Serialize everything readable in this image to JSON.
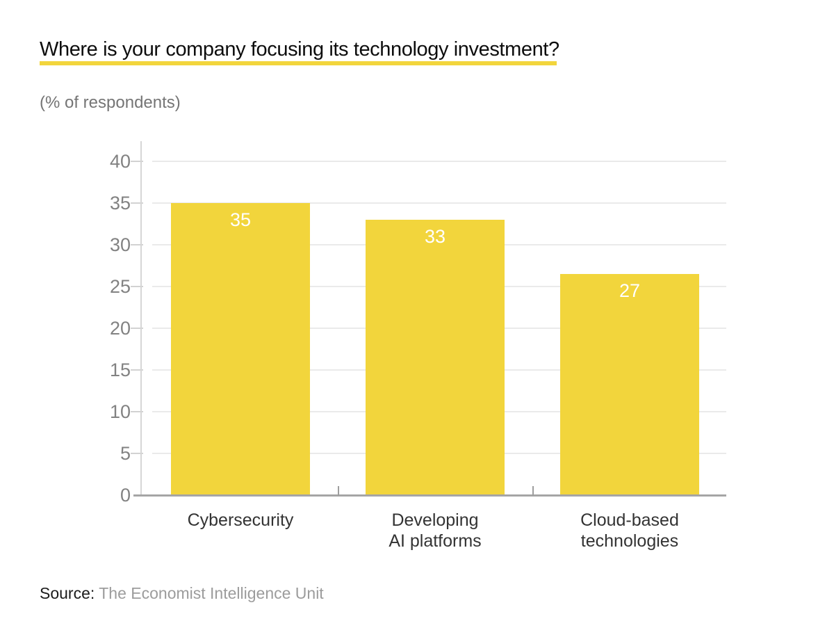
{
  "header": {
    "title": "Where is your company focusing its technology investment?",
    "subtitle": "(% of respondents)"
  },
  "footer": {
    "source_label": "Source:",
    "source_value": "The Economist Intelligence Unit"
  },
  "colors": {
    "accent_yellow": "#F2D53C",
    "grid": "#EAEAEA",
    "axis": "#A5A5A5",
    "y_label_text": "#828282",
    "x_label_text": "#333333",
    "bar_value_text": "#FFFFFF"
  },
  "chart_data": {
    "type": "bar",
    "title": "Where is your company focusing its technology investment?",
    "subtitle": "(% of respondents)",
    "categories": [
      "Cybersecurity",
      "Developing\nAI platforms",
      "Cloud-based\ntechnologies"
    ],
    "values": [
      35,
      33,
      27
    ],
    "bar_labels": [
      "35",
      "33",
      "27"
    ],
    "rendered_bar_heights": [
      35,
      33,
      26.5
    ],
    "ylim": [
      0,
      40
    ],
    "yticks": [
      0,
      5,
      10,
      15,
      20,
      25,
      30,
      35,
      40
    ],
    "grid": "horizontal",
    "legend": "none",
    "bar_color": "#F2D53C",
    "value_label_position": "inside-top",
    "source": "Source: The Economist Intelligence Unit"
  }
}
